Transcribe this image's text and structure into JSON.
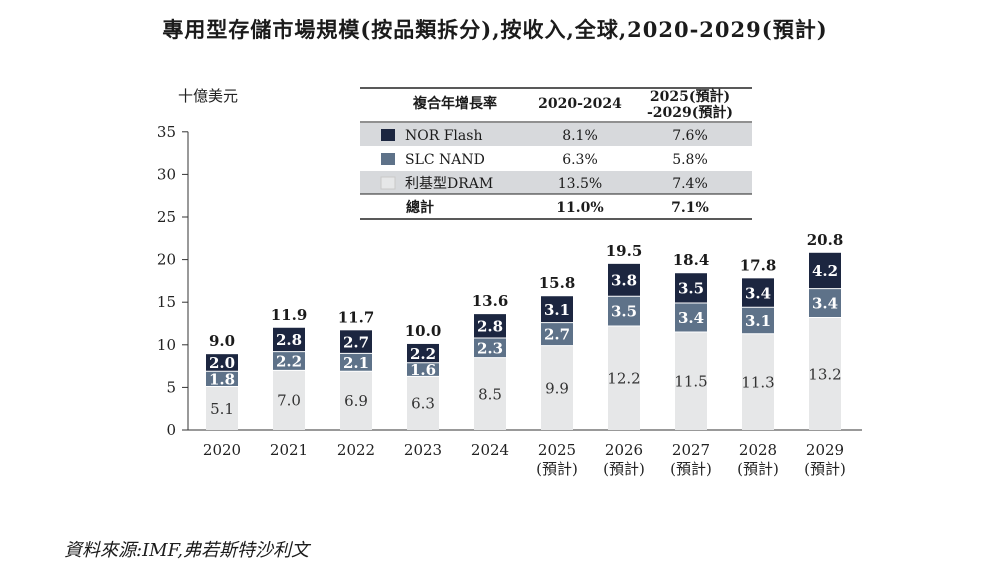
{
  "title": "專用型存儲市場規模(按品類拆分),按收入,全球,2020-2029(預計)",
  "source": "資料來源:IMF,弗若斯特沙利文",
  "chart_data": {
    "type": "bar",
    "stacked": true,
    "unit_label": "十億美元",
    "ylim": [
      0,
      35
    ],
    "yticks": [
      0,
      5,
      10,
      15,
      20,
      25,
      30,
      35
    ],
    "categories": [
      [
        "2020"
      ],
      [
        "2021"
      ],
      [
        "2022"
      ],
      [
        "2023"
      ],
      [
        "2024"
      ],
      [
        "2025",
        "(預計)"
      ],
      [
        "2026",
        "(預計)"
      ],
      [
        "2027",
        "(預計)"
      ],
      [
        "2028",
        "(預計)"
      ],
      [
        "2029",
        "(預計)"
      ]
    ],
    "series": [
      {
        "name": "利基型DRAM",
        "color": "#e6e7e8",
        "label_color": "#333333",
        "values": [
          5.1,
          7.0,
          6.9,
          6.3,
          8.5,
          9.9,
          12.2,
          11.5,
          11.3,
          13.2
        ]
      },
      {
        "name": "SLC NAND",
        "color": "#5e7289",
        "label_color": "#ffffff",
        "values": [
          1.8,
          2.2,
          2.1,
          1.6,
          2.3,
          2.7,
          3.5,
          3.4,
          3.1,
          3.4
        ]
      },
      {
        "name": "NOR Flash",
        "color": "#1c2640",
        "label_color": "#ffffff",
        "values": [
          2.0,
          2.8,
          2.7,
          2.2,
          2.8,
          3.1,
          3.8,
          3.5,
          3.4,
          4.2
        ]
      }
    ],
    "totals": [
      9.0,
      11.9,
      11.7,
      10.0,
      13.6,
      15.8,
      19.5,
      18.4,
      17.8,
      20.8
    ],
    "cagr_table": {
      "headers": [
        "複合年增長率",
        "2020-2024",
        [
          "2025(預計)",
          "-2029(預計)"
        ]
      ],
      "rows": [
        {
          "name": "NOR Flash",
          "color": "#1c2640",
          "v1": "8.1%",
          "v2": "7.6%"
        },
        {
          "name": "SLC NAND",
          "color": "#5e7289",
          "v1": "6.3%",
          "v2": "5.8%"
        },
        {
          "name": "利基型DRAM",
          "color": "#e6e7e8",
          "v1": "13.5%",
          "v2": "7.4%"
        }
      ],
      "total": {
        "name": "總計",
        "v1": "11.0%",
        "v2": "7.1%"
      }
    }
  }
}
